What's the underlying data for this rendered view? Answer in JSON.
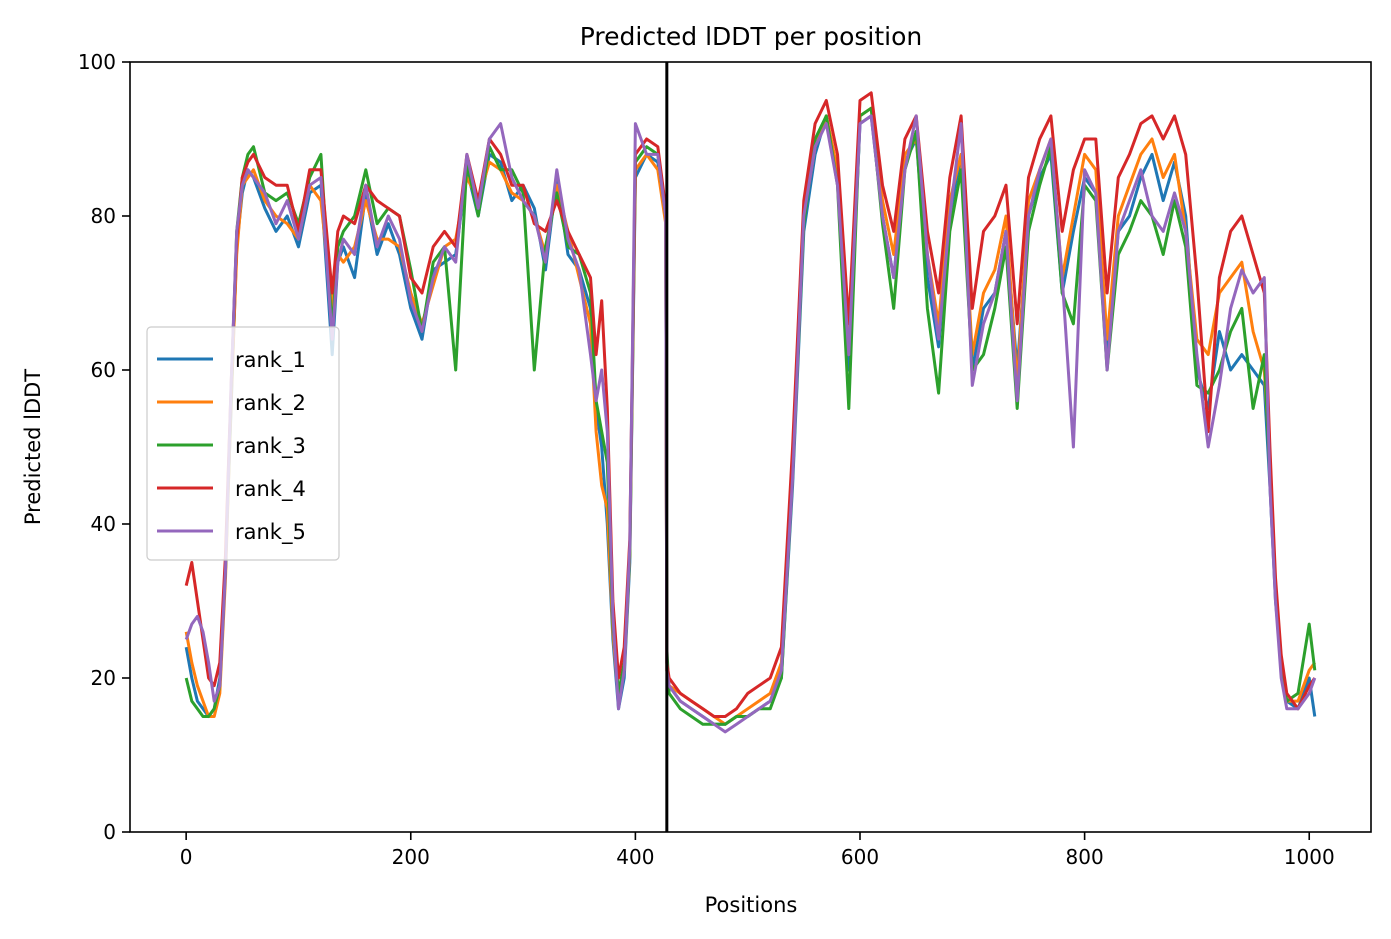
{
  "chart_data": {
    "type": "line",
    "title": "Predicted lDDT per position",
    "xlabel": "Positions",
    "ylabel": "Predicted lDDT",
    "xlim": [
      -50,
      1055
    ],
    "ylim": [
      0,
      100
    ],
    "xticks": [
      0,
      200,
      400,
      600,
      800,
      1000
    ],
    "yticks": [
      0,
      20,
      40,
      60,
      80,
      100
    ],
    "grid": false,
    "legend_position": "center-left",
    "chain_break": 428,
    "series": [
      {
        "name": "rank_1",
        "color": "#1f77b4",
        "x": [
          0,
          5,
          10,
          15,
          20,
          25,
          30,
          35,
          40,
          45,
          50,
          55,
          60,
          70,
          80,
          90,
          100,
          110,
          120,
          130,
          135,
          140,
          150,
          160,
          170,
          180,
          190,
          200,
          210,
          220,
          230,
          240,
          250,
          260,
          270,
          280,
          290,
          300,
          310,
          320,
          330,
          340,
          350,
          360,
          365,
          370,
          375,
          380,
          385,
          390,
          395,
          400,
          410,
          420,
          427,
          428,
          430,
          440,
          450,
          460,
          470,
          480,
          490,
          500,
          510,
          520,
          530,
          540,
          550,
          560,
          570,
          580,
          590,
          600,
          610,
          620,
          630,
          640,
          650,
          660,
          670,
          680,
          690,
          700,
          710,
          720,
          730,
          740,
          750,
          760,
          770,
          780,
          790,
          800,
          810,
          820,
          830,
          840,
          850,
          860,
          870,
          880,
          890,
          900,
          910,
          920,
          930,
          940,
          950,
          960,
          965,
          970,
          975,
          980,
          990,
          1000,
          1005
        ],
        "y": [
          24,
          20,
          17,
          16,
          15,
          16,
          20,
          35,
          55,
          76,
          83,
          86,
          85,
          81,
          78,
          80,
          76,
          83,
          84,
          62,
          74,
          76,
          72,
          83,
          75,
          79,
          75,
          68,
          64,
          73,
          74,
          75,
          86,
          80,
          88,
          87,
          82,
          84,
          81,
          73,
          85,
          75,
          73,
          68,
          55,
          50,
          40,
          25,
          16,
          20,
          35,
          85,
          88,
          87,
          80,
          22,
          19,
          17,
          16,
          15,
          14,
          14,
          15,
          15,
          16,
          17,
          20,
          45,
          78,
          88,
          93,
          85,
          60,
          92,
          93,
          80,
          72,
          87,
          90,
          72,
          63,
          80,
          88,
          60,
          68,
          70,
          78,
          60,
          80,
          85,
          88,
          70,
          78,
          85,
          83,
          62,
          78,
          80,
          85,
          88,
          82,
          87,
          80,
          60,
          55,
          65,
          60,
          62,
          60,
          58,
          45,
          30,
          22,
          17,
          16,
          20,
          15
        ]
      },
      {
        "name": "rank_2",
        "color": "#ff7f0e",
        "x": [
          0,
          5,
          10,
          15,
          20,
          25,
          30,
          35,
          40,
          45,
          50,
          55,
          60,
          70,
          80,
          90,
          100,
          110,
          120,
          130,
          135,
          140,
          150,
          160,
          170,
          180,
          190,
          200,
          210,
          220,
          230,
          240,
          250,
          260,
          270,
          280,
          290,
          300,
          310,
          320,
          330,
          340,
          350,
          360,
          365,
          370,
          375,
          380,
          385,
          390,
          395,
          400,
          410,
          420,
          427,
          428,
          430,
          440,
          450,
          460,
          470,
          480,
          490,
          500,
          510,
          520,
          530,
          540,
          550,
          560,
          570,
          580,
          590,
          600,
          610,
          620,
          630,
          640,
          650,
          660,
          670,
          680,
          690,
          700,
          710,
          720,
          730,
          740,
          750,
          760,
          770,
          780,
          790,
          800,
          810,
          820,
          830,
          840,
          850,
          860,
          870,
          880,
          890,
          900,
          910,
          920,
          930,
          940,
          950,
          960,
          965,
          970,
          975,
          980,
          990,
          1000,
          1005
        ],
        "y": [
          26,
          22,
          19,
          17,
          15,
          15,
          18,
          33,
          56,
          75,
          84,
          85,
          86,
          82,
          80,
          79,
          77,
          84,
          82,
          68,
          75,
          74,
          76,
          82,
          77,
          77,
          76,
          70,
          66,
          71,
          76,
          77,
          85,
          82,
          87,
          86,
          83,
          82,
          80,
          75,
          84,
          78,
          72,
          66,
          52,
          45,
          42,
          26,
          17,
          21,
          36,
          86,
          88,
          86,
          79,
          21,
          19,
          18,
          17,
          16,
          15,
          14,
          15,
          16,
          17,
          18,
          22,
          47,
          80,
          89,
          93,
          86,
          62,
          93,
          94,
          82,
          75,
          88,
          90,
          75,
          66,
          82,
          88,
          62,
          70,
          73,
          80,
          58,
          82,
          86,
          90,
          72,
          80,
          88,
          86,
          64,
          80,
          84,
          88,
          90,
          85,
          88,
          78,
          64,
          62,
          70,
          72,
          74,
          65,
          60,
          48,
          32,
          22,
          17,
          17,
          21,
          22
        ]
      },
      {
        "name": "rank_3",
        "color": "#2ca02c",
        "x": [
          0,
          5,
          10,
          15,
          20,
          25,
          30,
          35,
          40,
          45,
          50,
          55,
          60,
          70,
          80,
          90,
          100,
          110,
          120,
          130,
          135,
          140,
          150,
          160,
          170,
          180,
          190,
          200,
          210,
          220,
          230,
          240,
          250,
          260,
          270,
          280,
          290,
          300,
          310,
          320,
          330,
          340,
          350,
          360,
          365,
          370,
          375,
          380,
          385,
          390,
          395,
          400,
          410,
          420,
          427,
          428,
          430,
          440,
          450,
          460,
          470,
          480,
          490,
          500,
          510,
          520,
          530,
          540,
          550,
          560,
          570,
          580,
          590,
          600,
          610,
          620,
          630,
          640,
          650,
          660,
          670,
          680,
          690,
          700,
          710,
          720,
          730,
          740,
          750,
          760,
          770,
          780,
          790,
          800,
          810,
          820,
          830,
          840,
          850,
          860,
          870,
          880,
          890,
          900,
          910,
          920,
          930,
          940,
          950,
          960,
          965,
          970,
          975,
          980,
          990,
          1000,
          1005
        ],
        "y": [
          20,
          17,
          16,
          15,
          15,
          16,
          19,
          34,
          57,
          78,
          85,
          88,
          89,
          83,
          82,
          83,
          79,
          85,
          88,
          65,
          76,
          78,
          80,
          86,
          79,
          81,
          80,
          73,
          65,
          74,
          76,
          60,
          87,
          80,
          89,
          86,
          86,
          83,
          60,
          76,
          83,
          76,
          75,
          70,
          56,
          52,
          48,
          27,
          18,
          22,
          36,
          87,
          89,
          88,
          80,
          24,
          18,
          16,
          15,
          14,
          14,
          14,
          15,
          15,
          16,
          16,
          20,
          46,
          79,
          90,
          93,
          84,
          55,
          93,
          94,
          79,
          68,
          86,
          91,
          68,
          57,
          78,
          86,
          60,
          62,
          68,
          76,
          55,
          78,
          84,
          89,
          70,
          66,
          84,
          82,
          60,
          75,
          78,
          82,
          80,
          75,
          82,
          76,
          58,
          57,
          60,
          65,
          68,
          55,
          62,
          46,
          31,
          21,
          17,
          18,
          27,
          21
        ]
      },
      {
        "name": "rank_4",
        "color": "#d62728",
        "x": [
          0,
          5,
          10,
          15,
          20,
          25,
          30,
          35,
          40,
          45,
          50,
          55,
          60,
          70,
          80,
          90,
          100,
          110,
          120,
          130,
          135,
          140,
          150,
          160,
          170,
          180,
          190,
          200,
          210,
          220,
          230,
          240,
          250,
          260,
          270,
          280,
          290,
          300,
          310,
          320,
          330,
          340,
          350,
          360,
          365,
          370,
          375,
          380,
          385,
          390,
          395,
          400,
          410,
          420,
          427,
          428,
          430,
          440,
          450,
          460,
          470,
          480,
          490,
          500,
          510,
          520,
          530,
          540,
          550,
          560,
          570,
          580,
          590,
          600,
          610,
          620,
          630,
          640,
          650,
          660,
          670,
          680,
          690,
          700,
          710,
          720,
          730,
          740,
          750,
          760,
          770,
          780,
          790,
          800,
          810,
          820,
          830,
          840,
          850,
          860,
          870,
          880,
          890,
          900,
          910,
          920,
          930,
          940,
          950,
          960,
          965,
          970,
          975,
          980,
          990,
          1000,
          1005
        ],
        "y": [
          32,
          35,
          30,
          25,
          20,
          19,
          22,
          36,
          58,
          77,
          85,
          87,
          88,
          85,
          84,
          84,
          78,
          86,
          86,
          70,
          78,
          80,
          79,
          84,
          82,
          81,
          80,
          72,
          70,
          76,
          78,
          76,
          88,
          82,
          90,
          88,
          84,
          84,
          79,
          78,
          82,
          78,
          75,
          72,
          62,
          69,
          55,
          30,
          20,
          24,
          38,
          88,
          90,
          89,
          81,
          22,
          20,
          18,
          17,
          16,
          15,
          15,
          16,
          18,
          19,
          20,
          24,
          50,
          82,
          92,
          95,
          88,
          66,
          95,
          96,
          84,
          78,
          90,
          93,
          78,
          70,
          85,
          93,
          68,
          78,
          80,
          84,
          66,
          85,
          90,
          93,
          78,
          86,
          90,
          90,
          70,
          85,
          88,
          92,
          93,
          90,
          93,
          88,
          72,
          52,
          72,
          78,
          80,
          75,
          70,
          50,
          33,
          23,
          18,
          16,
          19,
          20
        ]
      },
      {
        "name": "rank_5",
        "color": "#9467bd",
        "x": [
          0,
          5,
          10,
          15,
          20,
          25,
          30,
          35,
          40,
          45,
          50,
          55,
          60,
          70,
          80,
          90,
          100,
          110,
          120,
          130,
          135,
          140,
          150,
          160,
          170,
          180,
          190,
          200,
          210,
          220,
          230,
          240,
          250,
          260,
          270,
          280,
          290,
          300,
          310,
          320,
          330,
          340,
          350,
          360,
          365,
          370,
          375,
          380,
          385,
          390,
          395,
          400,
          410,
          420,
          427,
          428,
          430,
          440,
          450,
          460,
          470,
          480,
          490,
          500,
          510,
          520,
          530,
          540,
          550,
          560,
          570,
          580,
          590,
          600,
          610,
          620,
          630,
          640,
          650,
          660,
          670,
          680,
          690,
          700,
          710,
          720,
          730,
          740,
          750,
          760,
          770,
          780,
          790,
          800,
          810,
          820,
          830,
          840,
          850,
          860,
          870,
          880,
          890,
          900,
          910,
          920,
          930,
          940,
          950,
          960,
          965,
          970,
          975,
          980,
          990,
          1000,
          1005
        ],
        "y": [
          25,
          27,
          28,
          26,
          22,
          17,
          19,
          34,
          58,
          78,
          84,
          86,
          85,
          83,
          79,
          82,
          77,
          84,
          85,
          64,
          74,
          77,
          75,
          84,
          76,
          80,
          77,
          69,
          65,
          72,
          76,
          74,
          88,
          81,
          90,
          92,
          85,
          82,
          80,
          74,
          86,
          77,
          73,
          62,
          56,
          60,
          52,
          28,
          16,
          21,
          37,
          92,
          88,
          88,
          80,
          21,
          19,
          17,
          16,
          15,
          14,
          13,
          14,
          15,
          16,
          17,
          21,
          46,
          80,
          89,
          92,
          84,
          62,
          92,
          93,
          80,
          72,
          86,
          93,
          75,
          64,
          80,
          92,
          58,
          66,
          70,
          78,
          56,
          80,
          86,
          90,
          72,
          50,
          86,
          83,
          60,
          78,
          82,
          86,
          80,
          78,
          83,
          78,
          62,
          50,
          58,
          68,
          73,
          70,
          72,
          45,
          30,
          20,
          16,
          16,
          18,
          20
        ]
      }
    ]
  }
}
